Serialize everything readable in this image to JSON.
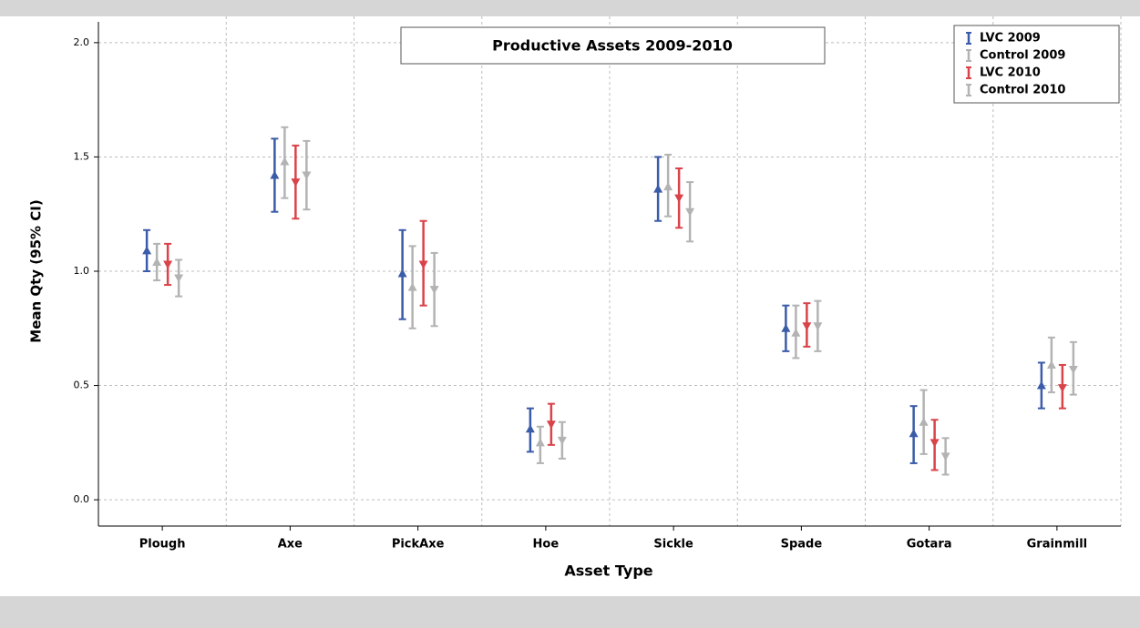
{
  "chart_data": {
    "type": "errorbar",
    "title": "Productive Assets 2009-2010",
    "x_label": "Asset Type",
    "y_label": "Mean Qty (95% CI)",
    "categories": [
      "Plough",
      "Axe",
      "PickAxe",
      "Hoe",
      "Sickle",
      "Spade",
      "Gotara",
      "Grainmill"
    ],
    "series": [
      {
        "name": "LVC 2009",
        "color": "#3b5ca8",
        "marker": "triangle-up",
        "values": [
          1.09,
          1.42,
          0.99,
          0.31,
          1.36,
          0.75,
          0.29,
          0.5
        ],
        "lower": [
          1.0,
          1.26,
          0.79,
          0.21,
          1.22,
          0.65,
          0.16,
          0.4
        ],
        "upper": [
          1.18,
          1.58,
          1.18,
          0.4,
          1.5,
          0.85,
          0.41,
          0.6
        ]
      },
      {
        "name": "Control 2009",
        "color": "#b3b3b3",
        "marker": "triangle-up",
        "values": [
          1.04,
          1.48,
          0.93,
          0.25,
          1.37,
          0.73,
          0.34,
          0.59
        ],
        "lower": [
          0.96,
          1.32,
          0.75,
          0.16,
          1.24,
          0.62,
          0.2,
          0.47
        ],
        "upper": [
          1.12,
          1.63,
          1.11,
          0.32,
          1.51,
          0.85,
          0.48,
          0.71
        ]
      },
      {
        "name": "LVC 2010",
        "color": "#d9434a",
        "marker": "triangle-down",
        "values": [
          1.03,
          1.39,
          1.03,
          0.33,
          1.32,
          0.76,
          0.25,
          0.49
        ],
        "lower": [
          0.94,
          1.23,
          0.85,
          0.24,
          1.19,
          0.67,
          0.13,
          0.4
        ],
        "upper": [
          1.12,
          1.55,
          1.22,
          0.42,
          1.45,
          0.86,
          0.35,
          0.59
        ]
      },
      {
        "name": "Control 2010",
        "color": "#b3b3b3",
        "marker": "triangle-down",
        "values": [
          0.97,
          1.42,
          0.92,
          0.26,
          1.26,
          0.76,
          0.19,
          0.57
        ],
        "lower": [
          0.89,
          1.27,
          0.76,
          0.18,
          1.13,
          0.65,
          0.11,
          0.46
        ],
        "upper": [
          1.05,
          1.57,
          1.08,
          0.34,
          1.39,
          0.87,
          0.27,
          0.69
        ]
      }
    ],
    "ylim": [
      -0.115,
      2.115
    ],
    "yticks": [
      {
        "value": 0,
        "label": "0.0"
      },
      0.5,
      {
        "value": 1,
        "label": "1.0"
      },
      1.5,
      {
        "value": 2,
        "label": "2.0"
      }
    ],
    "grid": true,
    "legend": "top-right"
  }
}
